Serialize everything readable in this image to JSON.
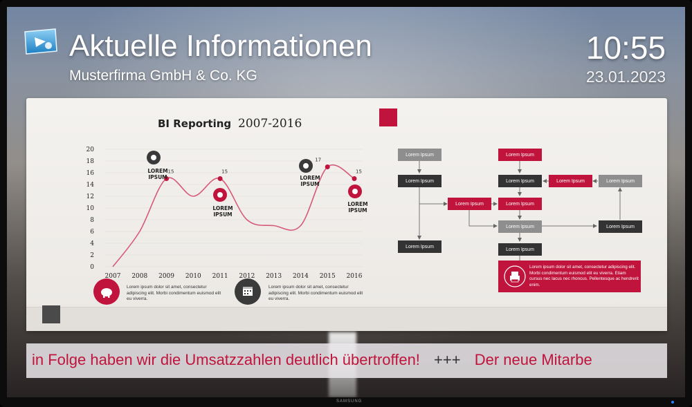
{
  "header": {
    "title": "Aktuelle Informationen",
    "subtitle": "Musterfirma GmbH & Co. KG",
    "time": "10:55",
    "date": "23.01.2023"
  },
  "device": {
    "brand": "SAMSUNG"
  },
  "chart_data": {
    "type": "line",
    "title": "BI Reporting",
    "title_years": "2007-2016",
    "categories": [
      "2007",
      "2008",
      "2009",
      "2010",
      "2011",
      "2012",
      "2013",
      "2014",
      "2015",
      "2016"
    ],
    "series": [
      {
        "values": [
          0,
          6,
          15,
          12,
          15,
          8,
          7,
          7,
          17,
          15
        ]
      }
    ],
    "ylim": [
      0,
      20
    ],
    "yticks": [
      "0",
      "2",
      "4",
      "6",
      "8",
      "10",
      "12",
      "14",
      "16",
      "18",
      "20"
    ],
    "marker_labels": [
      {
        "category": "2009",
        "value": "15"
      },
      {
        "category": "2011",
        "value": "15"
      },
      {
        "category": "2015",
        "value": "17"
      },
      {
        "category": "2016",
        "value": "15"
      }
    ],
    "annotations": [
      "LOREM IPSUM",
      "LOREM IPSUM",
      "LOREM IPSUM",
      "LOREM IPSUM"
    ]
  },
  "notes": [
    {
      "text": "Lorem ipsum dolor sit amet, consectetur adipiscing elit. Morbi condimentum euismod elit eu viverra.",
      "icon": "piggy-bank-icon"
    },
    {
      "text": "Lorem ipsum dolor sit amet, consectetur adipiscing elit. Morbi condimentum euismod elit eu viverra.",
      "icon": "calendar-icon"
    }
  ],
  "flowchart": {
    "box_label": "Lorem Ipsum",
    "info_text": "Lorem ipsum dolor sit amet, consectetur adipiscing elit. Morbi condimentum euismod elit eu viverra. Etiam cursus nec lacus nec rhoncus. Pellentesque ac hendrerit enim."
  },
  "ticker": {
    "part1": "in Folge haben wir die Umsatzzahlen deutlich übertroffen!",
    "separator": "+++",
    "part2": "Der neue Mitarbe"
  },
  "colors": {
    "accent": "#c0143c",
    "dark": "#333333",
    "gray": "#8e8e8e"
  }
}
